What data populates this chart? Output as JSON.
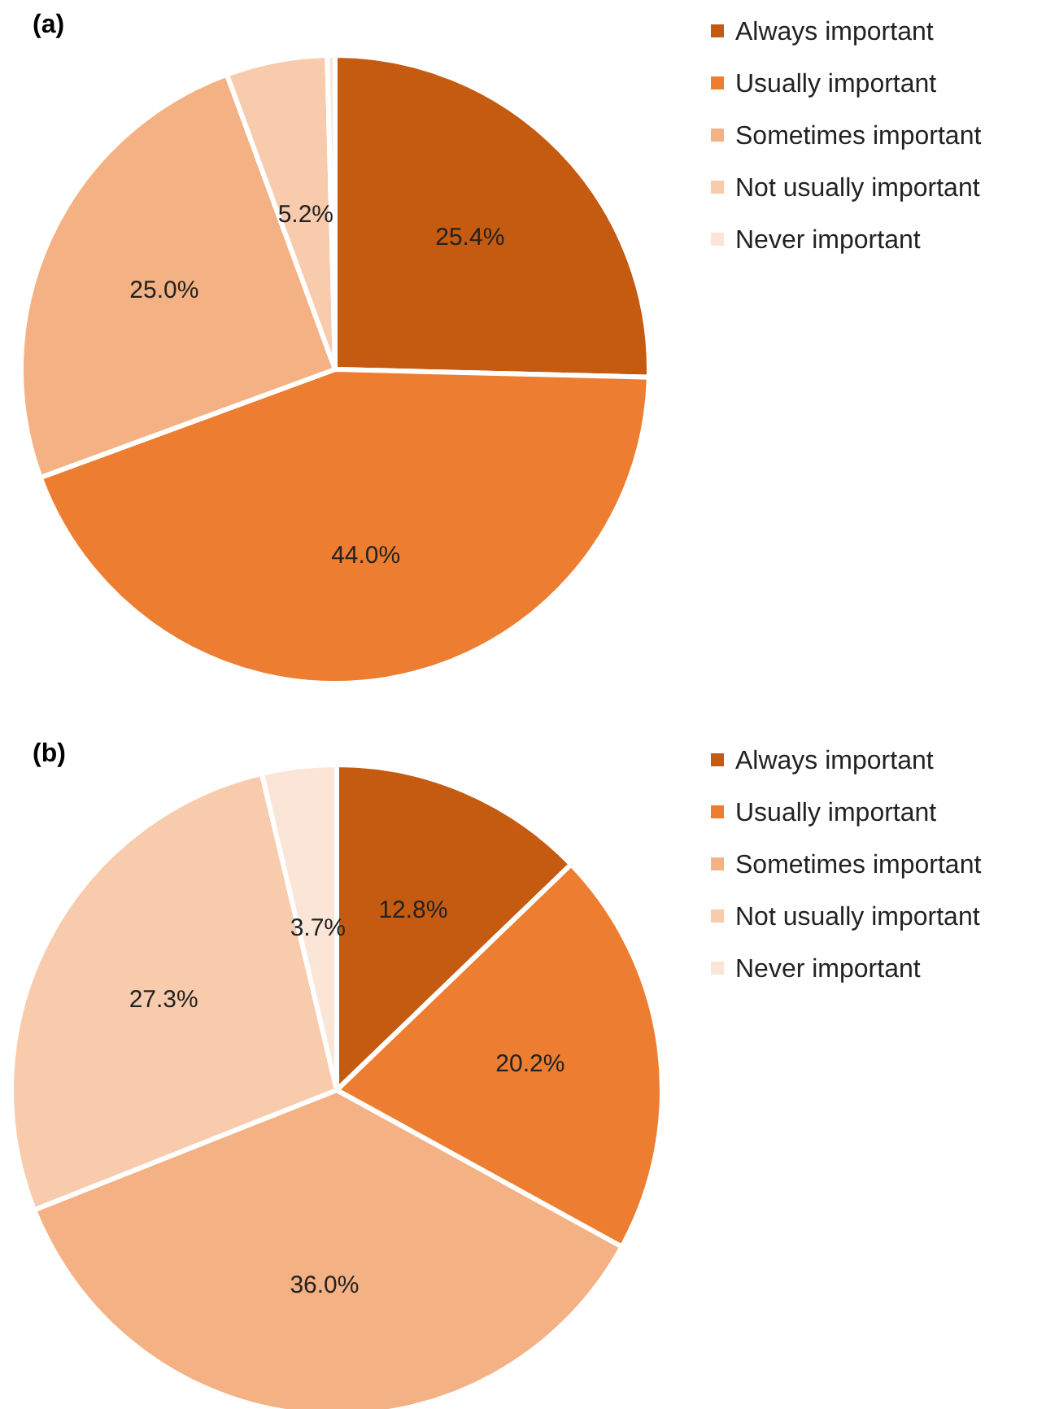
{
  "chart_data": [
    {
      "type": "pie",
      "title": "(a)",
      "categories": [
        "Always important",
        "Usually important",
        "Sometimes important",
        "Not usually important",
        "Never important"
      ],
      "values": [
        25.4,
        44.0,
        25.0,
        5.2,
        0.4
      ],
      "colors": [
        "#c55a11",
        "#ed7d31",
        "#f4b183",
        "#f8cbad",
        "#fbe5d6"
      ],
      "value_labels": [
        "25.4%",
        "44.0%",
        "25.0%",
        "5.2%",
        null
      ],
      "legend": "right"
    },
    {
      "type": "pie",
      "title": "(b)",
      "categories": [
        "Always important",
        "Usually important",
        "Sometimes important",
        "Not usually important",
        "Never important"
      ],
      "values": [
        12.8,
        20.2,
        36.0,
        27.3,
        3.7
      ],
      "colors": [
        "#c55a11",
        "#ed7d31",
        "#f4b183",
        "#f8cbad",
        "#fbe5d6"
      ],
      "value_labels": [
        "12.8%",
        "20.2%",
        "36.0%",
        "27.3%",
        "3.7%"
      ],
      "legend": "right"
    }
  ]
}
